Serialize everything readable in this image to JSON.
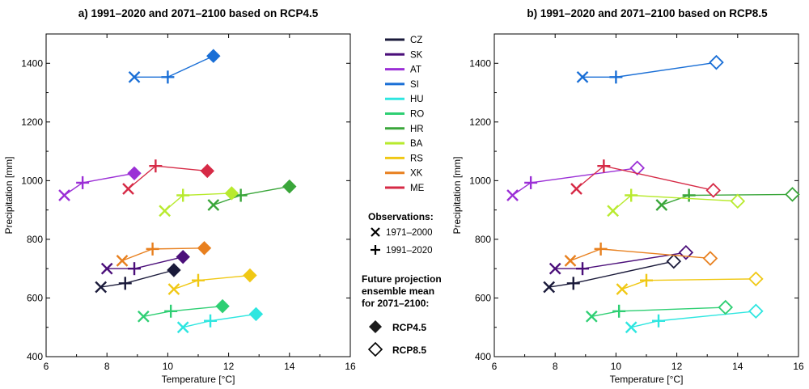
{
  "chart_data": [
    {
      "type": "scatter",
      "title": "a) 1991–2020 and 2071–2100 based on RCP4.5",
      "xlabel": "Temperature [°C]",
      "ylabel": "Precipitation [mm]",
      "xlim": [
        6,
        16
      ],
      "ylim": [
        400,
        1500
      ],
      "x_ticks": [
        "6",
        "8",
        "10",
        "12",
        "14",
        "16"
      ],
      "y_ticks": [
        "400",
        "600",
        "800",
        "1000",
        "1200",
        "1400"
      ],
      "projection_label": "RCP4.5",
      "projection_marker": "filled-diamond",
      "series": [
        {
          "name": "CZ",
          "color": "#1a1a3a",
          "obs_1971_2000": [
            7.8,
            637
          ],
          "obs_1991_2020": [
            8.6,
            650
          ],
          "projection_2071_2100": [
            10.2,
            695
          ]
        },
        {
          "name": "SK",
          "color": "#4b0f7a",
          "obs_1971_2000": [
            8.0,
            700
          ],
          "obs_1991_2020": [
            8.9,
            700
          ],
          "projection_2071_2100": [
            10.5,
            740
          ]
        },
        {
          "name": "AT",
          "color": "#9b2fd6",
          "obs_1971_2000": [
            6.6,
            950
          ],
          "obs_1991_2020": [
            7.2,
            993
          ],
          "projection_2071_2100": [
            8.9,
            1025
          ]
        },
        {
          "name": "SI",
          "color": "#1a6fd6",
          "obs_1971_2000": [
            8.9,
            1353
          ],
          "obs_1991_2020": [
            10.0,
            1353
          ],
          "projection_2071_2100": [
            11.5,
            1425
          ]
        },
        {
          "name": "HU",
          "color": "#2ee6e0",
          "obs_1971_2000": [
            10.5,
            500
          ],
          "obs_1991_2020": [
            11.4,
            522
          ],
          "projection_2071_2100": [
            12.9,
            545
          ]
        },
        {
          "name": "RO",
          "color": "#2ecf73",
          "obs_1971_2000": [
            9.2,
            537
          ],
          "obs_1991_2020": [
            10.1,
            555
          ],
          "projection_2071_2100": [
            11.8,
            572
          ]
        },
        {
          "name": "HR",
          "color": "#3aa63a",
          "obs_1971_2000": [
            11.5,
            917
          ],
          "obs_1991_2020": [
            12.4,
            950
          ],
          "projection_2071_2100": [
            14.0,
            980
          ]
        },
        {
          "name": "BA",
          "color": "#b8ea2e",
          "obs_1971_2000": [
            9.9,
            897
          ],
          "obs_1991_2020": [
            10.5,
            950
          ],
          "projection_2071_2100": [
            12.1,
            957
          ]
        },
        {
          "name": "RS",
          "color": "#f0c814",
          "obs_1971_2000": [
            10.2,
            630
          ],
          "obs_1991_2020": [
            11.0,
            660
          ],
          "projection_2071_2100": [
            12.7,
            677
          ]
        },
        {
          "name": "XK",
          "color": "#e8801f",
          "obs_1971_2000": [
            8.5,
            727
          ],
          "obs_1991_2020": [
            9.5,
            767
          ],
          "projection_2071_2100": [
            11.2,
            770
          ]
        },
        {
          "name": "ME",
          "color": "#d62a46",
          "obs_1971_2000": [
            8.7,
            972
          ],
          "obs_1991_2020": [
            9.6,
            1050
          ],
          "projection_2071_2100": [
            11.3,
            1033
          ]
        }
      ]
    },
    {
      "type": "scatter",
      "title": "b) 1991–2020 and 2071–2100 based on RCP8.5",
      "xlabel": "Temperature [°C]",
      "ylabel": "Precipitation [mm]",
      "xlim": [
        6,
        16
      ],
      "ylim": [
        400,
        1500
      ],
      "x_ticks": [
        "6",
        "8",
        "10",
        "12",
        "14",
        "16"
      ],
      "y_ticks": [
        "400",
        "600",
        "800",
        "1000",
        "1200",
        "1400"
      ],
      "projection_label": "RCP8.5",
      "projection_marker": "open-diamond",
      "series": [
        {
          "name": "CZ",
          "color": "#1a1a3a",
          "obs_1971_2000": [
            7.8,
            637
          ],
          "obs_1991_2020": [
            8.6,
            650
          ],
          "projection_2071_2100": [
            11.9,
            725
          ]
        },
        {
          "name": "SK",
          "color": "#4b0f7a",
          "obs_1971_2000": [
            8.0,
            700
          ],
          "obs_1991_2020": [
            8.9,
            700
          ],
          "projection_2071_2100": [
            12.3,
            755
          ]
        },
        {
          "name": "AT",
          "color": "#9b2fd6",
          "obs_1971_2000": [
            6.6,
            950
          ],
          "obs_1991_2020": [
            7.2,
            993
          ],
          "projection_2071_2100": [
            10.7,
            1043
          ]
        },
        {
          "name": "SI",
          "color": "#1a6fd6",
          "obs_1971_2000": [
            8.9,
            1353
          ],
          "obs_1991_2020": [
            10.0,
            1353
          ],
          "projection_2071_2100": [
            13.3,
            1403
          ]
        },
        {
          "name": "HU",
          "color": "#2ee6e0",
          "obs_1971_2000": [
            10.5,
            500
          ],
          "obs_1991_2020": [
            11.4,
            522
          ],
          "projection_2071_2100": [
            14.6,
            555
          ]
        },
        {
          "name": "RO",
          "color": "#2ecf73",
          "obs_1971_2000": [
            9.2,
            537
          ],
          "obs_1991_2020": [
            10.1,
            555
          ],
          "projection_2071_2100": [
            13.6,
            568
          ]
        },
        {
          "name": "HR",
          "color": "#3aa63a",
          "obs_1971_2000": [
            11.5,
            917
          ],
          "obs_1991_2020": [
            12.4,
            950
          ],
          "projection_2071_2100": [
            15.8,
            953
          ]
        },
        {
          "name": "BA",
          "color": "#b8ea2e",
          "obs_1971_2000": [
            9.9,
            897
          ],
          "obs_1991_2020": [
            10.5,
            950
          ],
          "projection_2071_2100": [
            14.0,
            930
          ]
        },
        {
          "name": "RS",
          "color": "#f0c814",
          "obs_1971_2000": [
            10.2,
            630
          ],
          "obs_1991_2020": [
            11.0,
            660
          ],
          "projection_2071_2100": [
            14.6,
            665
          ]
        },
        {
          "name": "XK",
          "color": "#e8801f",
          "obs_1971_2000": [
            8.5,
            727
          ],
          "obs_1991_2020": [
            9.5,
            767
          ],
          "projection_2071_2100": [
            13.1,
            735
          ]
        },
        {
          "name": "ME",
          "color": "#d62a46",
          "obs_1971_2000": [
            8.7,
            972
          ],
          "obs_1991_2020": [
            9.6,
            1050
          ],
          "projection_2071_2100": [
            13.2,
            967
          ]
        }
      ]
    }
  ],
  "legend": {
    "countries": [
      {
        "name": "CZ",
        "color": "#1a1a3a"
      },
      {
        "name": "SK",
        "color": "#4b0f7a"
      },
      {
        "name": "AT",
        "color": "#9b2fd6"
      },
      {
        "name": "SI",
        "color": "#1a6fd6"
      },
      {
        "name": "HU",
        "color": "#2ee6e0"
      },
      {
        "name": "RO",
        "color": "#2ecf73"
      },
      {
        "name": "HR",
        "color": "#3aa63a"
      },
      {
        "name": "BA",
        "color": "#b8ea2e"
      },
      {
        "name": "RS",
        "color": "#f0c814"
      },
      {
        "name": "XK",
        "color": "#e8801f"
      },
      {
        "name": "ME",
        "color": "#d62a46"
      }
    ],
    "observations_title": "Observations:",
    "obs_1971_2000_label": "1971–2000",
    "obs_1991_2020_label": "1991–2020",
    "projection_title_lines": [
      "Future projection",
      "ensemble mean",
      "for 2071–2100:"
    ],
    "rcp45_label": "RCP4.5",
    "rcp85_label": "RCP8.5"
  }
}
